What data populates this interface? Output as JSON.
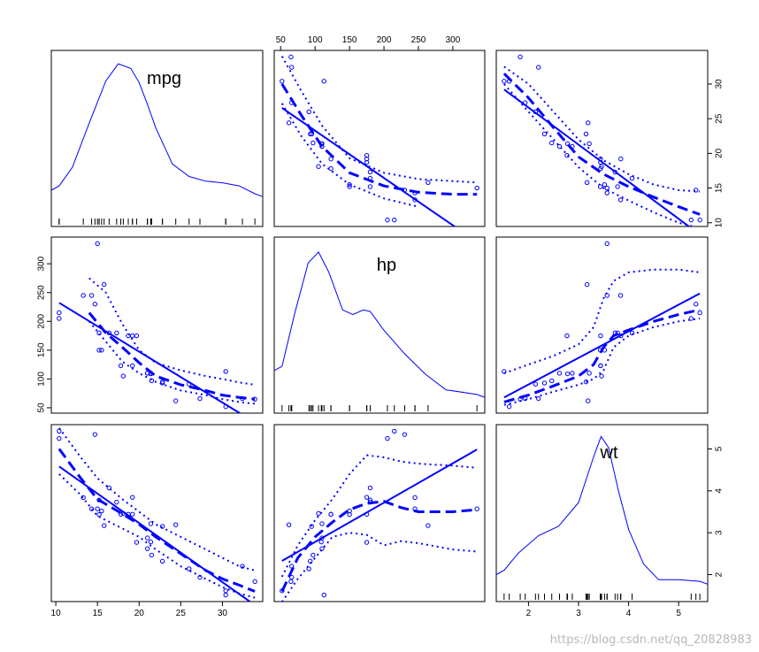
{
  "watermark": "https://blog.csdn.net/qq_20828983",
  "chart_data": {
    "type": "scatter",
    "subtype": "scatterplot-matrix",
    "variables": [
      "mpg",
      "hp",
      "wt"
    ],
    "colors": {
      "points": "#0000ff",
      "lines": "#0000ff",
      "axes": "#000000"
    },
    "ranges": {
      "mpg": [
        10.4,
        33.9
      ],
      "hp": [
        52,
        335
      ],
      "wt": [
        1.513,
        5.424
      ]
    },
    "ticks": {
      "mpg": [
        10,
        15,
        20,
        25,
        30
      ],
      "hp": [
        50,
        100,
        150,
        200,
        250,
        300
      ],
      "wt": [
        2,
        3,
        4,
        5
      ]
    },
    "data": {
      "mpg": [
        21.0,
        21.0,
        22.8,
        21.4,
        18.7,
        18.1,
        14.3,
        24.4,
        22.8,
        19.2,
        17.8,
        16.4,
        17.3,
        15.2,
        10.4,
        10.4,
        14.7,
        32.4,
        30.4,
        33.9,
        21.5,
        15.5,
        15.2,
        13.3,
        19.2,
        27.3,
        26.0,
        30.4,
        15.8,
        19.7,
        15.0,
        21.4
      ],
      "hp": [
        110,
        110,
        93,
        110,
        175,
        105,
        245,
        62,
        95,
        123,
        123,
        180,
        180,
        180,
        205,
        215,
        230,
        66,
        52,
        65,
        97,
        150,
        150,
        245,
        175,
        66,
        91,
        113,
        264,
        175,
        335,
        109
      ],
      "wt": [
        2.62,
        2.875,
        2.32,
        3.215,
        3.44,
        3.46,
        3.57,
        3.19,
        3.15,
        3.44,
        3.44,
        4.07,
        3.73,
        3.78,
        5.25,
        5.424,
        5.345,
        2.2,
        1.615,
        1.835,
        2.465,
        3.52,
        3.435,
        3.84,
        3.845,
        1.935,
        2.14,
        1.513,
        3.17,
        2.77,
        3.57,
        2.78
      ]
    },
    "densities": {
      "mpg": {
        "x": [
          10.4,
          12,
          14,
          16,
          17.5,
          19,
          20,
          21,
          22,
          24,
          26,
          28,
          30,
          32,
          33.9
        ],
        "y": [
          0.18,
          0.3,
          0.58,
          0.85,
          0.96,
          0.93,
          0.84,
          0.7,
          0.55,
          0.32,
          0.24,
          0.21,
          0.2,
          0.18,
          0.13
        ]
      },
      "hp": {
        "x": [
          52,
          70,
          90,
          105,
          120,
          140,
          155,
          170,
          180,
          200,
          230,
          260,
          290,
          335
        ],
        "y": [
          0.22,
          0.55,
          0.88,
          0.95,
          0.82,
          0.58,
          0.55,
          0.58,
          0.57,
          0.45,
          0.3,
          0.17,
          0.07,
          0.04
        ]
      },
      "wt": {
        "x": [
          1.513,
          1.8,
          2.2,
          2.6,
          3.0,
          3.3,
          3.45,
          3.6,
          3.8,
          4.0,
          4.3,
          4.6,
          5.0,
          5.424
        ],
        "y": [
          0.12,
          0.23,
          0.34,
          0.4,
          0.55,
          0.84,
          0.97,
          0.9,
          0.62,
          0.38,
          0.16,
          0.06,
          0.06,
          0.05
        ]
      }
    },
    "smoothers": {
      "mpg_vs_hp": {
        "x": [
          52,
          80,
          110,
          150,
          200,
          250,
          300,
          335
        ],
        "center": [
          30.0,
          25.5,
          21.0,
          17.2,
          15.3,
          14.4,
          14.1,
          14.1
        ],
        "upper": [
          34.0,
          29.0,
          24.0,
          19.3,
          17.2,
          16.3,
          16.0,
          15.8
        ],
        "lower": [
          27.2,
          22.5,
          18.5,
          15.5,
          13.5,
          12.3,
          null,
          null
        ]
      },
      "hp_vs_mpg": {
        "x": [
          14,
          16,
          18,
          20,
          22,
          25,
          28,
          30,
          32,
          33.9
        ],
        "center": [
          215,
          180,
          155,
          128,
          105,
          90,
          80,
          72,
          68,
          65
        ],
        "upper": [
          275,
          250,
          195,
          150,
          128,
          115,
          105,
          100,
          94,
          90
        ],
        "lower": [
          200,
          165,
          130,
          110,
          95,
          80,
          72,
          65,
          60,
          57
        ]
      },
      "mpg_vs_wt": {
        "x": [
          1.513,
          2.0,
          2.5,
          3.0,
          3.5,
          4.0,
          4.5,
          5.0,
          5.424
        ],
        "center": [
          31.5,
          28.0,
          23.7,
          19.5,
          17.0,
          15.2,
          13.7,
          12.3,
          11.2
        ],
        "upper": [
          32.5,
          30.0,
          26.0,
          22.0,
          19.0,
          17.0,
          15.5,
          14.7,
          14.5
        ],
        "lower": [
          30.0,
          26.0,
          22.0,
          18.0,
          15.0,
          13.2,
          11.5,
          10.0,
          9.2
        ]
      },
      "wt_vs_mpg": {
        "x": [
          10.4,
          13,
          15,
          18,
          20,
          22,
          25,
          28,
          30,
          32,
          33.9
        ],
        "center": [
          5.0,
          4.3,
          3.8,
          3.45,
          3.2,
          2.9,
          2.5,
          2.1,
          1.9,
          1.75,
          1.6
        ],
        "upper": [
          5.5,
          4.8,
          4.3,
          3.8,
          3.5,
          3.2,
          2.9,
          2.6,
          2.4,
          2.2,
          2.1
        ],
        "lower": [
          4.4,
          3.9,
          3.4,
          3.1,
          2.9,
          2.6,
          2.2,
          1.9,
          1.7,
          1.55,
          1.45
        ]
      },
      "hp_vs_wt": {
        "x": [
          1.513,
          2.0,
          2.5,
          3.0,
          3.3,
          3.5,
          3.7,
          4.0,
          4.5,
          5.0,
          5.424
        ],
        "center": [
          60,
          72,
          88,
          105,
          125,
          155,
          175,
          185,
          200,
          212,
          220
        ],
        "upper": [
          110,
          125,
          140,
          160,
          190,
          240,
          270,
          285,
          290,
          290,
          285
        ],
        "lower": [
          55,
          65,
          78,
          90,
          100,
          115,
          155,
          175,
          190,
          200,
          205
        ]
      },
      "wt_vs_hp": {
        "x": [
          52,
          75,
          100,
          125,
          150,
          175,
          200,
          225,
          250,
          300,
          335
        ],
        "center": [
          1.6,
          2.4,
          2.9,
          3.25,
          3.55,
          3.7,
          3.75,
          3.6,
          3.5,
          3.5,
          3.55
        ],
        "upper": [
          1.95,
          2.7,
          3.3,
          3.8,
          4.4,
          4.85,
          4.8,
          4.7,
          4.65,
          4.6,
          4.55
        ],
        "lower": [
          1.35,
          1.9,
          2.4,
          2.9,
          3.0,
          2.95,
          2.7,
          2.8,
          2.75,
          2.6,
          2.55
        ]
      }
    }
  }
}
